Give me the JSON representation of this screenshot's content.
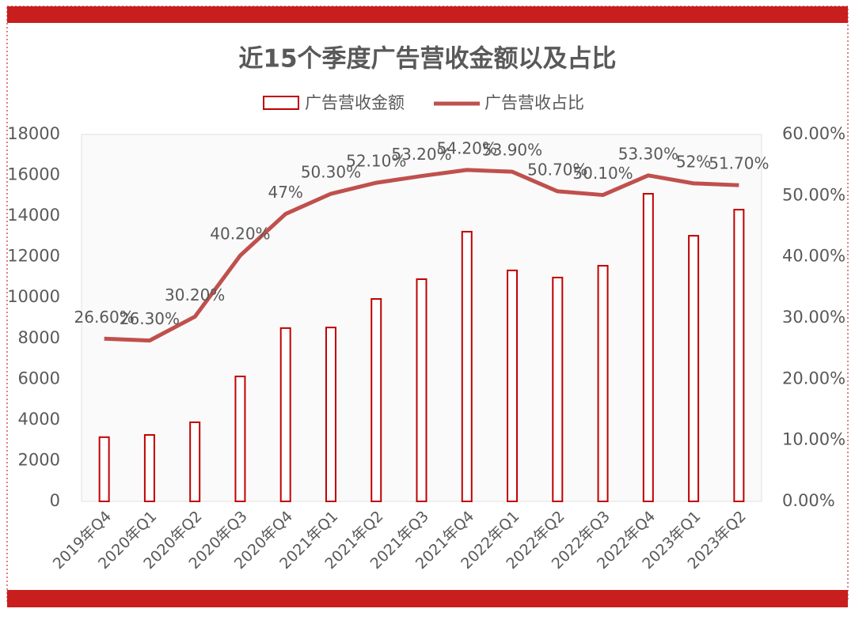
{
  "chart_data": {
    "type": "bar-line",
    "title": "近15个季度广告营收金额以及占比",
    "categories": [
      "2019年Q4",
      "2020年Q1",
      "2020年Q2",
      "2020年Q3",
      "2020年Q4",
      "2021年Q1",
      "2021年Q2",
      "2021年Q3",
      "2021年Q4",
      "2022年Q1",
      "2022年Q2",
      "2022年Q3",
      "2022年Q4",
      "2023年Q1",
      "2023年Q2"
    ],
    "series": [
      {
        "name": "广告营收金额",
        "type": "bar",
        "color": "#c00000",
        "values": [
          3150,
          3260,
          3880,
          6130,
          8500,
          8530,
          9930,
          10900,
          13230,
          11330,
          10980,
          11560,
          15090,
          13030,
          14310
        ]
      },
      {
        "name": "广告营收占比",
        "type": "line",
        "axis": "y2",
        "color": "#c0504d",
        "values": [
          26.6,
          26.3,
          30.2,
          40.2,
          47,
          50.3,
          52.1,
          53.2,
          54.2,
          53.9,
          50.7,
          50.1,
          53.3,
          52,
          51.7
        ],
        "value_labels": [
          "26.60%",
          "26.30%",
          "30.20%",
          "40.20%",
          "47%",
          "50.30%",
          "52.10%",
          "53.20%",
          "54.20%",
          "53.90%",
          "50.70%",
          "50.10%",
          "53.30%",
          "52%",
          "51.70%"
        ]
      }
    ],
    "ylim": [
      0,
      18000
    ],
    "yticks": [
      0,
      2000,
      4000,
      6000,
      8000,
      10000,
      12000,
      14000,
      16000,
      18000
    ],
    "y2lim": [
      0,
      60
    ],
    "y2ticks": [
      {
        "value": 0,
        "label": "0.00%"
      },
      {
        "value": 10,
        "label": "10.00%"
      },
      {
        "value": 20,
        "label": "20.00%"
      },
      {
        "value": 30,
        "label": "30.00%"
      },
      {
        "value": 40,
        "label": "40.00%"
      },
      {
        "value": 50,
        "label": "50.00%"
      },
      {
        "value": 60,
        "label": "60.00%"
      }
    ]
  }
}
